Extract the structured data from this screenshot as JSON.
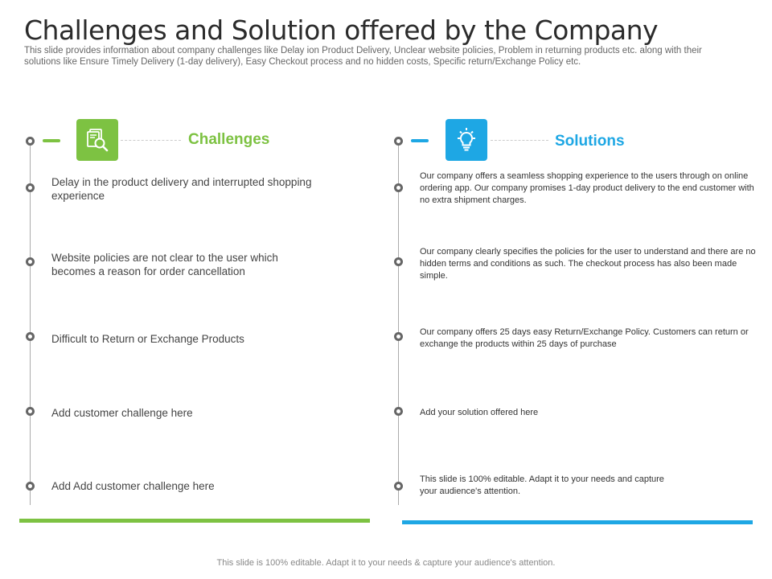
{
  "header": {
    "title": "Challenges and Solution offered by the Company",
    "subtitle": "This slide provides information about company challenges like Delay ion Product Delivery, Unclear website policies, Problem in returning products etc. along with their solutions like Ensure Timely Delivery (1-day delivery), Easy Checkout process and no hidden costs, Specific return/Exchange Policy etc."
  },
  "colors": {
    "challenges_accent": "#7dc242",
    "solutions_accent": "#1ea7e4"
  },
  "challenges": {
    "heading": "Challenges",
    "icon": "document-search-icon",
    "items": [
      "Delay in the product delivery and interrupted shopping experience",
      "Website policies are not clear to the user which becomes a reason for order cancellation",
      "Difficult to Return or Exchange Products",
      "Add customer challenge here",
      "Add Add customer challenge here"
    ]
  },
  "solutions": {
    "heading": "Solutions",
    "icon": "lightbulb-icon",
    "items": [
      "Our company offers a seamless shopping experience to the users through on online ordering app. Our company promises 1-day product delivery to the end customer with no extra shipment charges.",
      "Our company clearly specifies the policies for the user to understand and there are no hidden terms and conditions as such. The checkout process has also been made simple.",
      "Our company offers 25 days easy Return/Exchange Policy. Customers can return or exchange the products within 25 days of purchase",
      "Add your solution offered here",
      "This slide is 100% editable. Adapt it to your needs and capture your audience's attention."
    ]
  },
  "footer": {
    "text": "This slide is 100% editable. Adapt it to your needs & capture your audience's attention."
  }
}
